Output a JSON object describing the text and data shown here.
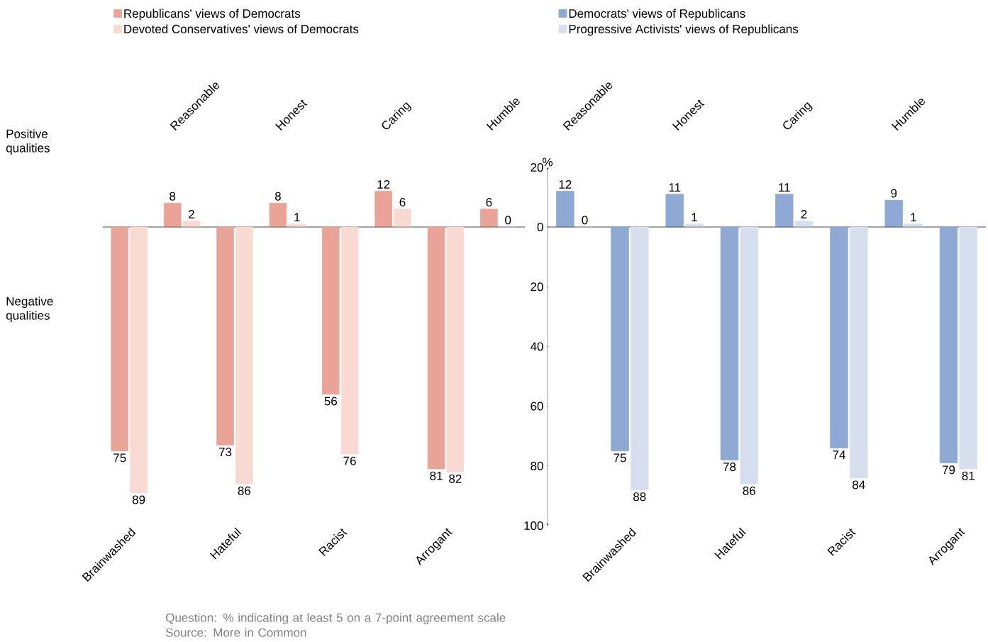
{
  "chart_data": [
    {
      "type": "bar",
      "categories": [
        null,
        "Reasonable",
        null,
        "Honest",
        null,
        "Caring",
        null,
        "Humble"
      ],
      "series": [
        {
          "name": "Republicans' views of Democrats",
          "color": "#eaa497",
          "values": [
            null,
            8,
            null,
            8,
            null,
            12,
            null,
            6
          ]
        },
        {
          "name": "Devoted Conservatives' views of Democrats",
          "color": "#f9dad3",
          "values": [
            null,
            2,
            null,
            1,
            null,
            6,
            null,
            0
          ]
        }
      ],
      "ylim": [
        0,
        20
      ],
      "tick_labels": "x",
      "legend": "top",
      "data_labels": true,
      "annotations": [
        "Positive qualities"
      ]
    },
    {
      "type": "bar",
      "categories": [
        "Reasonable",
        null,
        "Honest",
        null,
        "Caring",
        null,
        "Humble",
        null
      ],
      "series": [
        {
          "name": "Democrats' views of Republicans",
          "color": "#8eaad4",
          "values": [
            12,
            null,
            11,
            null,
            11,
            null,
            9,
            null
          ]
        },
        {
          "name": "Progressive Activists' views of Republicans",
          "color": "#d7dfee",
          "values": [
            0,
            null,
            1,
            null,
            2,
            null,
            1,
            null
          ]
        }
      ],
      "ylabel": "%",
      "ylim": [
        0,
        20
      ],
      "yticks": [
        0,
        20
      ],
      "legend": "top",
      "data_labels": true
    },
    {
      "type": "bar",
      "categories": [
        "Brainwashed",
        null,
        "Hateful",
        null,
        "Racist",
        null,
        "Arrogant",
        null
      ],
      "series": [
        {
          "color": "#eaa497",
          "values": [
            75,
            null,
            73,
            null,
            56,
            null,
            81,
            null
          ]
        },
        {
          "color": "#f9dad3",
          "values": [
            89,
            null,
            86,
            null,
            76,
            null,
            82,
            null
          ]
        }
      ],
      "ylim": [
        100,
        0
      ],
      "tick_labels": "x",
      "data_labels": true,
      "annotations": [
        "Negative qualities",
        "Question: % indicating at least 5 on a 7-point agreement scale",
        "Source: More in Common"
      ]
    },
    {
      "type": "bar",
      "categories": [
        null,
        "Brainwashed",
        null,
        "Hateful",
        null,
        "Racist",
        null,
        "Arrogant"
      ],
      "series": [
        {
          "color": "#8eaad4",
          "values": [
            null,
            75,
            null,
            78,
            null,
            74,
            null,
            79
          ]
        },
        {
          "color": "#d7dfee",
          "values": [
            null,
            88,
            null,
            86,
            null,
            84,
            null,
            81
          ]
        }
      ],
      "ylim": [
        100,
        0
      ],
      "yticks": [
        20,
        40,
        60,
        80,
        100
      ],
      "data_labels": true
    }
  ]
}
